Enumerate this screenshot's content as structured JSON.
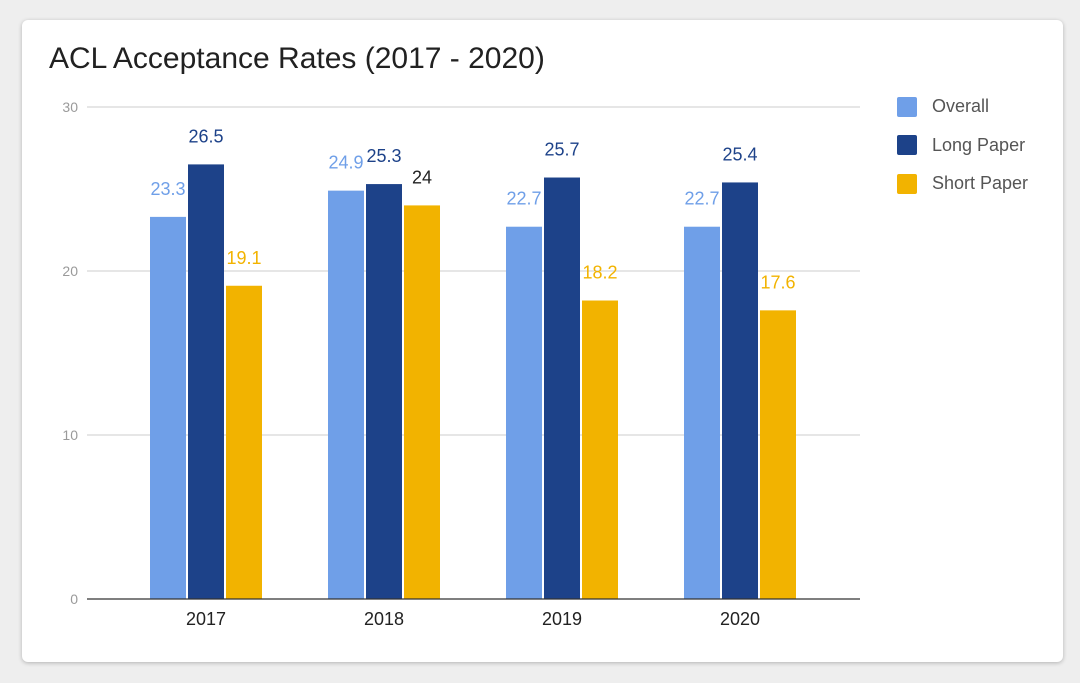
{
  "chart_data": {
    "type": "bar",
    "title": "ACL Acceptance Rates (2017 - 2020)",
    "xlabel": "",
    "ylabel": "",
    "categories": [
      "2017",
      "2018",
      "2019",
      "2020"
    ],
    "ylim": [
      0,
      30
    ],
    "yticks": [
      0,
      10,
      20,
      30
    ],
    "grid": true,
    "legend_position": "right",
    "series": [
      {
        "name": "Overall",
        "color": "#6f9fe8",
        "label_color": "#6f9fe8",
        "values": [
          23.3,
          24.9,
          22.7,
          22.7
        ],
        "labels": [
          "23.3",
          "24.9",
          "22.7",
          "22.7"
        ]
      },
      {
        "name": "Long Paper",
        "color": "#1d4289",
        "label_color": "#1d4289",
        "values": [
          26.5,
          25.3,
          25.7,
          25.4
        ],
        "labels": [
          "26.5",
          "25.3",
          "25.7",
          "25.4"
        ]
      },
      {
        "name": "Short Paper",
        "color": "#f2b300",
        "label_color": "#f2b300",
        "values": [
          19.1,
          24,
          18.2,
          17.6
        ],
        "labels": [
          "19.1",
          "24",
          "18.2",
          "17.6"
        ]
      }
    ]
  }
}
